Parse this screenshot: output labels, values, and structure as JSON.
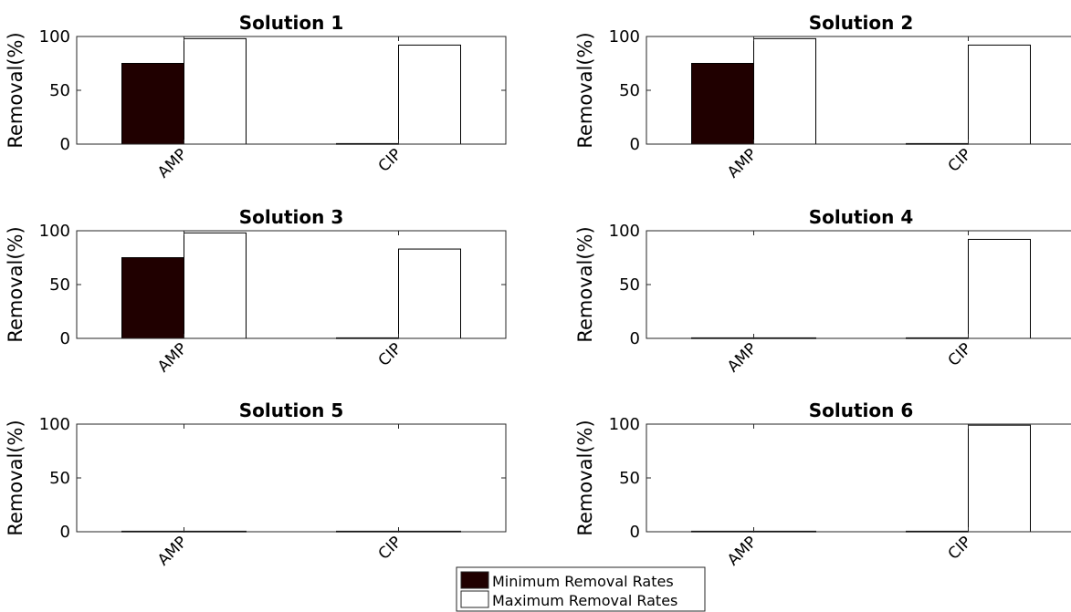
{
  "chart_data": [
    {
      "type": "bar",
      "title": "Solution 1",
      "ylabel": "Removal(%)",
      "categories": [
        "AMP",
        "CIP"
      ],
      "yticks": [
        0,
        50,
        100
      ],
      "ylim": [
        0,
        100
      ],
      "series": [
        {
          "name": "Minimum Removal Rates",
          "values": [
            75,
            0.5
          ]
        },
        {
          "name": "Maximum Removal Rates",
          "values": [
            98,
            92
          ]
        }
      ]
    },
    {
      "type": "bar",
      "title": "Solution 2",
      "ylabel": "Removal(%)",
      "categories": [
        "AMP",
        "CIP"
      ],
      "yticks": [
        0,
        50,
        100
      ],
      "ylim": [
        0,
        100
      ],
      "series": [
        {
          "name": "Minimum Removal Rates",
          "values": [
            75,
            0.5
          ]
        },
        {
          "name": "Maximum Removal Rates",
          "values": [
            98,
            92
          ]
        }
      ]
    },
    {
      "type": "bar",
      "title": "Solution 3",
      "ylabel": "Removal(%)",
      "categories": [
        "AMP",
        "CIP"
      ],
      "yticks": [
        0,
        50,
        100
      ],
      "ylim": [
        0,
        100
      ],
      "series": [
        {
          "name": "Minimum Removal Rates",
          "values": [
            75,
            0.5
          ]
        },
        {
          "name": "Maximum Removal Rates",
          "values": [
            98,
            83
          ]
        }
      ]
    },
    {
      "type": "bar",
      "title": "Solution 4",
      "ylabel": "Removal(%)",
      "categories": [
        "AMP",
        "CIP"
      ],
      "yticks": [
        0,
        50,
        100
      ],
      "ylim": [
        0,
        100
      ],
      "series": [
        {
          "name": "Minimum Removal Rates",
          "values": [
            0.5,
            0.5
          ]
        },
        {
          "name": "Maximum Removal Rates",
          "values": [
            0.5,
            92
          ]
        }
      ]
    },
    {
      "type": "bar",
      "title": "Solution 5",
      "ylabel": "Removal(%)",
      "categories": [
        "AMP",
        "CIP"
      ],
      "yticks": [
        0,
        50,
        100
      ],
      "ylim": [
        0,
        100
      ],
      "series": [
        {
          "name": "Minimum Removal Rates",
          "values": [
            0.5,
            0.5
          ]
        },
        {
          "name": "Maximum Removal Rates",
          "values": [
            0.5,
            0.5
          ]
        }
      ]
    },
    {
      "type": "bar",
      "title": "Solution 6",
      "ylabel": "Removal(%)",
      "categories": [
        "AMP",
        "CIP"
      ],
      "yticks": [
        0,
        50,
        100
      ],
      "ylim": [
        0,
        100
      ],
      "series": [
        {
          "name": "Minimum Removal Rates",
          "values": [
            0.5,
            0.5
          ]
        },
        {
          "name": "Maximum Removal Rates",
          "values": [
            0.5,
            99
          ]
        }
      ]
    }
  ],
  "legend": {
    "items": [
      {
        "label": "Minimum Removal Rates",
        "color": "#200000"
      },
      {
        "label": "Maximum Removal Rates",
        "color": "#ffffff"
      }
    ]
  },
  "colors": {
    "min_bar": "#200000",
    "max_bar": "#ffffff",
    "axis": "#262626"
  }
}
